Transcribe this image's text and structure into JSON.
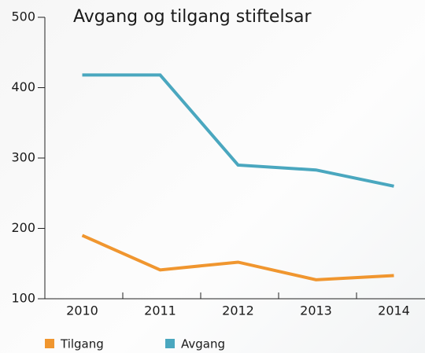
{
  "chart_data": {
    "type": "line",
    "title": "Avgang og tilgang stiftelsar",
    "categories": [
      "2010",
      "2011",
      "2012",
      "2013",
      "2014"
    ],
    "series": [
      {
        "name": "Tilgang",
        "color": "#f0962f",
        "values": [
          190,
          141,
          152,
          127,
          133
        ]
      },
      {
        "name": "Avgang",
        "color": "#4aa7bf",
        "values": [
          418,
          418,
          290,
          283,
          260
        ]
      }
    ],
    "ylim": [
      100,
      500
    ],
    "yticks": [
      100,
      200,
      300,
      400,
      500
    ],
    "legend": "bottom"
  }
}
